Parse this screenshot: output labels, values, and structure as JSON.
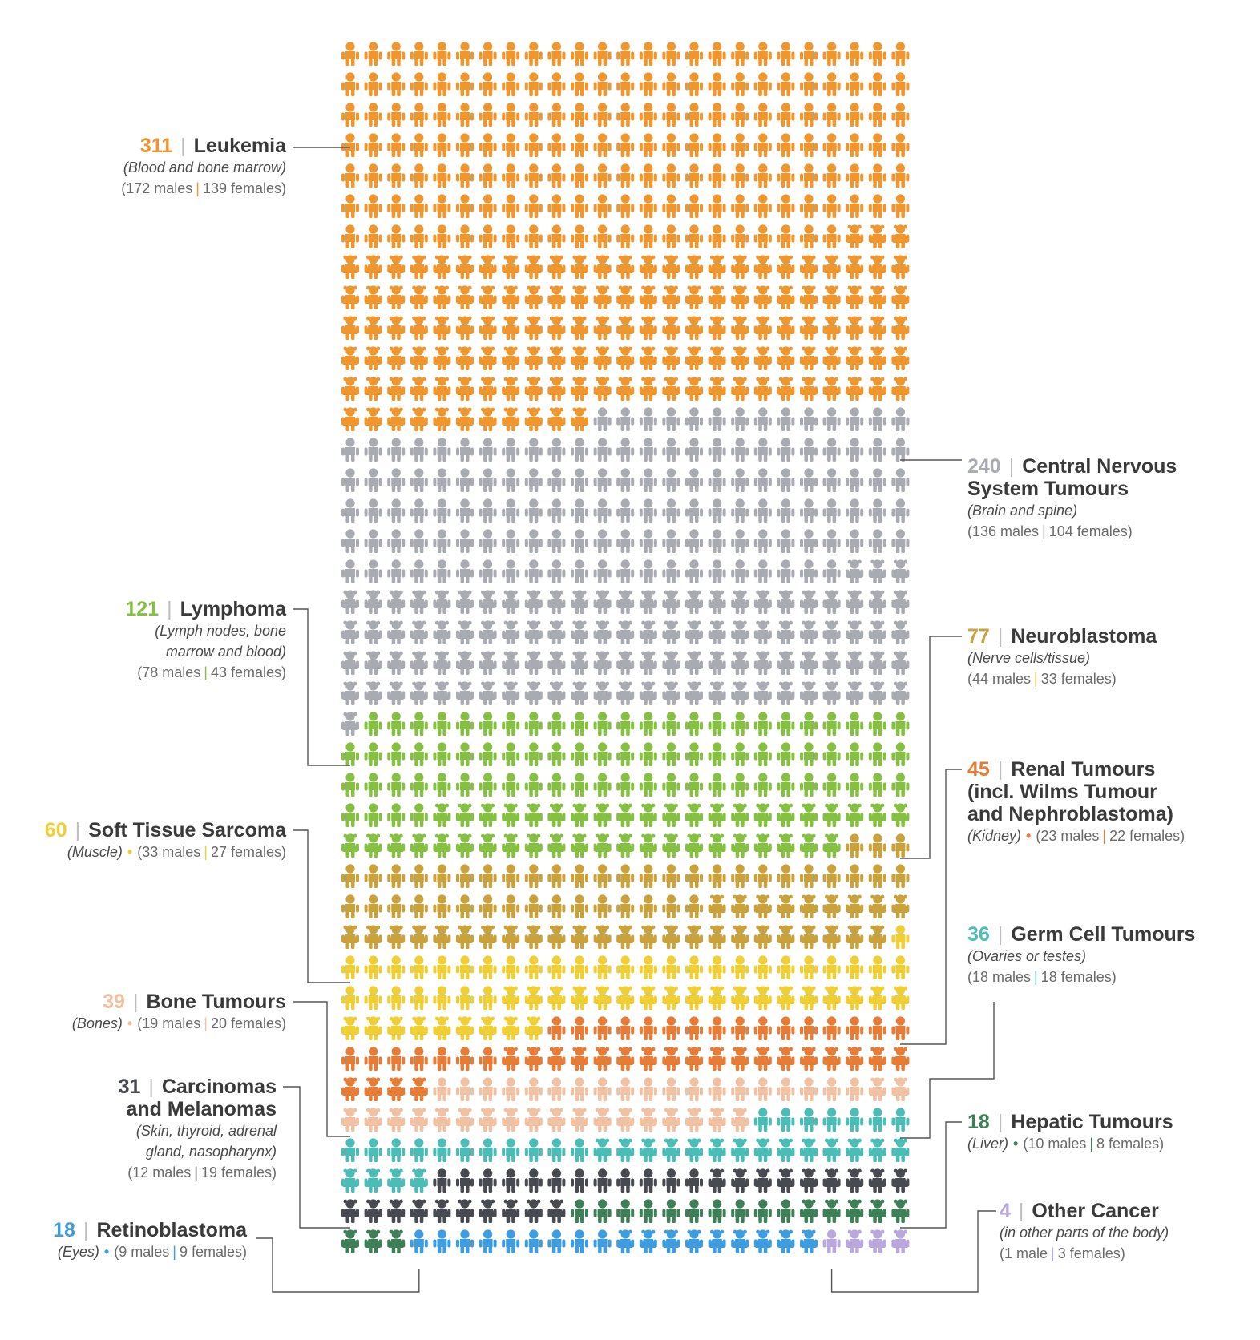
{
  "chart_data": {
    "type": "pictogram",
    "unit": "child",
    "columns": 25,
    "categories": [
      {
        "key": "leukemia",
        "count": 311,
        "name": "Leukemia",
        "subtitle": "(Blood and bone marrow)",
        "males": 172,
        "females": 139,
        "males_text": "(172 males",
        "females_text": "139 females)",
        "color": "#f0962e",
        "side": "left"
      },
      {
        "key": "cns",
        "count": 240,
        "name": "Central Nervous\nSystem Tumours",
        "subtitle": "(Brain and spine)",
        "males": 136,
        "females": 104,
        "males_text": "(136 males",
        "females_text": "104 females)",
        "color": "#a9abb2",
        "side": "right"
      },
      {
        "key": "lymphoma",
        "count": 121,
        "name": "Lymphoma",
        "subtitle": "(Lymph nodes, bone\nmarrow and blood)",
        "males": 78,
        "females": 43,
        "males_text": "(78 males",
        "females_text": "43 females)",
        "color": "#86c043",
        "side": "left"
      },
      {
        "key": "neuroblastoma",
        "count": 77,
        "name": "Neuroblastoma",
        "subtitle": "(Nerve cells/tissue)",
        "males": 44,
        "females": 33,
        "males_text": "(44 males",
        "females_text": "33 females)",
        "color": "#c9a23c",
        "side": "right"
      },
      {
        "key": "softtissue",
        "count": 60,
        "name": "Soft Tissue Sarcoma",
        "subtitle": "(Muscle)",
        "males": 33,
        "females": 27,
        "males_text": "(33 males",
        "females_text": "27 females)",
        "color": "#f0cf35",
        "side": "left"
      },
      {
        "key": "renal",
        "count": 45,
        "name": "Renal Tumours\n(incl. Wilms Tumour\nand Nephroblastoma)",
        "subtitle": "(Kidney)",
        "males": 23,
        "females": 22,
        "males_text": "(23 males",
        "females_text": "22 females)",
        "color": "#e77c36",
        "side": "right"
      },
      {
        "key": "bone",
        "count": 39,
        "name": "Bone Tumours",
        "subtitle": "(Bones)",
        "males": 19,
        "females": 20,
        "males_text": "(19 males",
        "females_text": "20 females)",
        "color": "#f1c1a3",
        "side": "left"
      },
      {
        "key": "germcell",
        "count": 36,
        "name": "Germ Cell Tumours",
        "subtitle": "(Ovaries or testes)",
        "males": 18,
        "females": 18,
        "males_text": "(18 males",
        "females_text": "18 females)",
        "color": "#4cbdb6",
        "side": "right"
      },
      {
        "key": "carcinomas",
        "count": 31,
        "name": "Carcinomas\nand Melanomas",
        "subtitle": "(Skin, thyroid, adrenal\ngland, nasopharynx)",
        "males": 12,
        "females": 19,
        "males_text": "(12 males",
        "females_text": "19 females)",
        "color": "#474a50",
        "side": "left"
      },
      {
        "key": "hepatic",
        "count": 18,
        "name": "Hepatic Tumours",
        "subtitle": "(Liver)",
        "males": 10,
        "females": 8,
        "males_text": "(10 males",
        "females_text": "8 females)",
        "color": "#3e7f58",
        "side": "right"
      },
      {
        "key": "retinoblastoma",
        "count": 18,
        "name": "Retinoblastoma",
        "subtitle": "(Eyes)",
        "males": 9,
        "females": 9,
        "males_text": "(9 males",
        "females_text": "9 females)",
        "color": "#3e9de0",
        "side": "left"
      },
      {
        "key": "other",
        "count": 4,
        "name": "Other Cancer",
        "subtitle": "(in other parts of the body)",
        "males": 1,
        "females": 3,
        "males_text": "(1 male",
        "females_text": "3 females)",
        "color": "#b9a7dd",
        "side": "right"
      }
    ]
  },
  "labels": {
    "leukemia": {
      "num": "311",
      "name": "Leukemia",
      "sub": "(Blood and bone marrow)",
      "m": "(172 males",
      "f": "139 females)"
    },
    "cns": {
      "num": "240",
      "name": "Central Nervous\nSystem Tumours",
      "sub": "(Brain and spine)",
      "m": "(136 males",
      "f": "104 females)"
    },
    "lymphoma": {
      "num": "121",
      "name": "Lymphoma",
      "sub": "(Lymph nodes, bone\nmarrow and blood)",
      "m": "(78 males",
      "f": "43 females)"
    },
    "neuroblastoma": {
      "num": "77",
      "name": "Neuroblastoma",
      "sub": "(Nerve cells/tissue)",
      "m": "(44 males",
      "f": "33 females)"
    },
    "softtissue": {
      "num": "60",
      "name": "Soft Tissue Sarcoma",
      "sub": "(Muscle)",
      "m": "(33 males",
      "f": "27 females)"
    },
    "renal": {
      "num": "45",
      "name": "Renal Tumours\n(incl. Wilms Tumour\nand Nephroblastoma)",
      "sub": "(Kidney)",
      "m": "(23 males",
      "f": "22 females)"
    },
    "bone": {
      "num": "39",
      "name": "Bone Tumours",
      "sub": "(Bones)",
      "m": "(19 males",
      "f": "20 females)"
    },
    "germcell": {
      "num": "36",
      "name": "Germ Cell Tumours",
      "sub": "(Ovaries or testes)",
      "m": "(18 males",
      "f": "18 females)"
    },
    "carcinomas": {
      "num": "31",
      "name": "Carcinomas\nand Melanomas",
      "sub": "(Skin, thyroid, adrenal\ngland, nasopharynx)",
      "m": "(12 males",
      "f": "19 females)"
    },
    "hepatic": {
      "num": "18",
      "name": "Hepatic Tumours",
      "sub": "(Liver)",
      "m": "(10 males",
      "f": "8 females)"
    },
    "retinoblastoma": {
      "num": "18",
      "name": "Retinoblastoma",
      "sub": "(Eyes)",
      "m": "(9 males",
      "f": "9 females)"
    },
    "other": {
      "num": "4",
      "name": "Other Cancer",
      "sub": "(in other parts of the body)",
      "m": "(1 male",
      "f": "3 females)"
    }
  }
}
